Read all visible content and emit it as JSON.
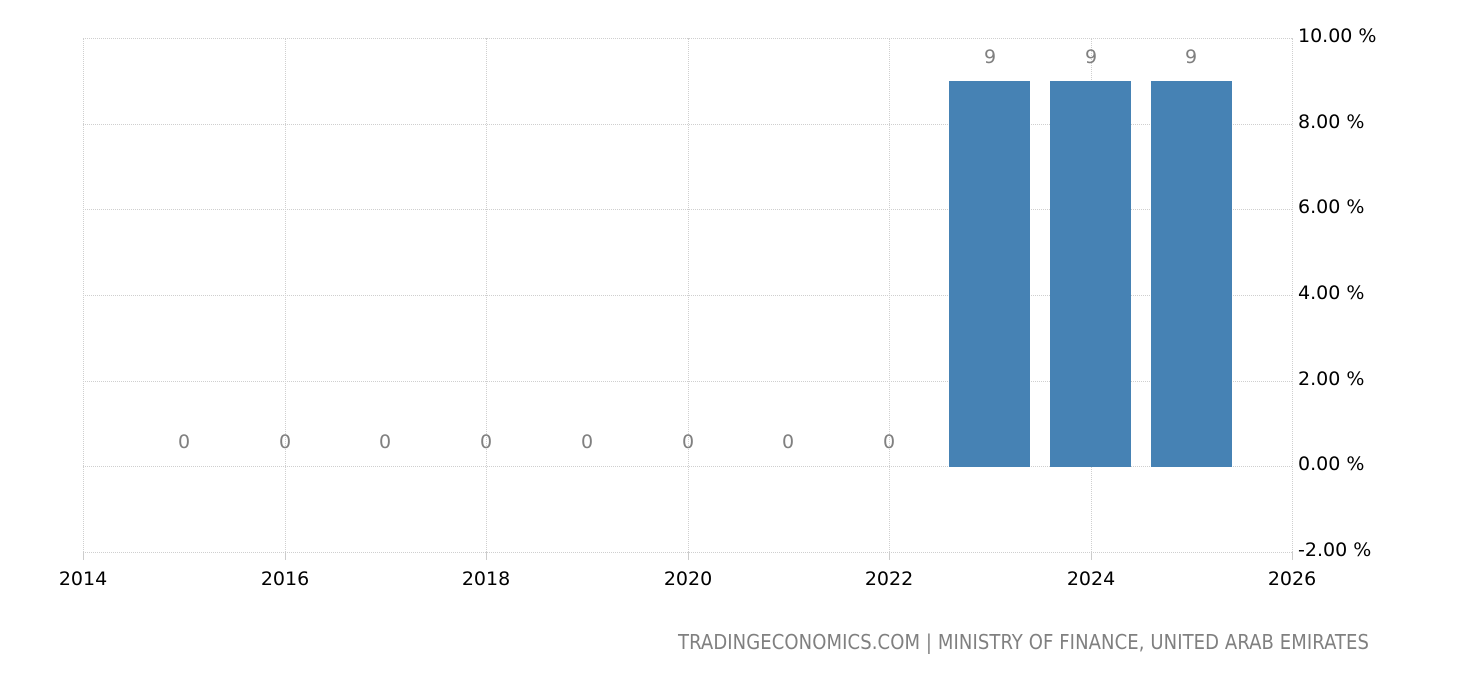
{
  "chart_data": {
    "type": "bar",
    "title": "",
    "xlabel": "",
    "ylabel": "",
    "categories": [
      "2015",
      "2016",
      "2017",
      "2018",
      "2019",
      "2020",
      "2021",
      "2022",
      "2023",
      "2024",
      "2025"
    ],
    "values": [
      0,
      0,
      0,
      0,
      0,
      0,
      0,
      0,
      9,
      9,
      9
    ],
    "data_labels": [
      "0",
      "0",
      "0",
      "0",
      "0",
      "0",
      "0",
      "0",
      "9",
      "9",
      "9"
    ],
    "ylim": [
      -2,
      10
    ],
    "xlim": [
      2014,
      2026
    ],
    "y_ticks": [
      10,
      8,
      6,
      4,
      2,
      0,
      -2
    ],
    "y_tick_labels": [
      "10.00 %",
      "8.00 %",
      "6.00 %",
      "4.00 %",
      "2.00 %",
      "0.00 %",
      "-2.00 %"
    ],
    "x_ticks": [
      2014,
      2016,
      2018,
      2020,
      2022,
      2024,
      2026
    ],
    "x_tick_labels": [
      "2014",
      "2016",
      "2018",
      "2020",
      "2022",
      "2024",
      "2026"
    ],
    "y_axis_position": "right",
    "grid": true,
    "legend": null,
    "bar_color": "#4682B4",
    "data_label_color": "#808080"
  },
  "footer": {
    "source": "TRADINGECONOMICS.COM | MINISTRY OF FINANCE, UNITED ARAB EMIRATES"
  }
}
